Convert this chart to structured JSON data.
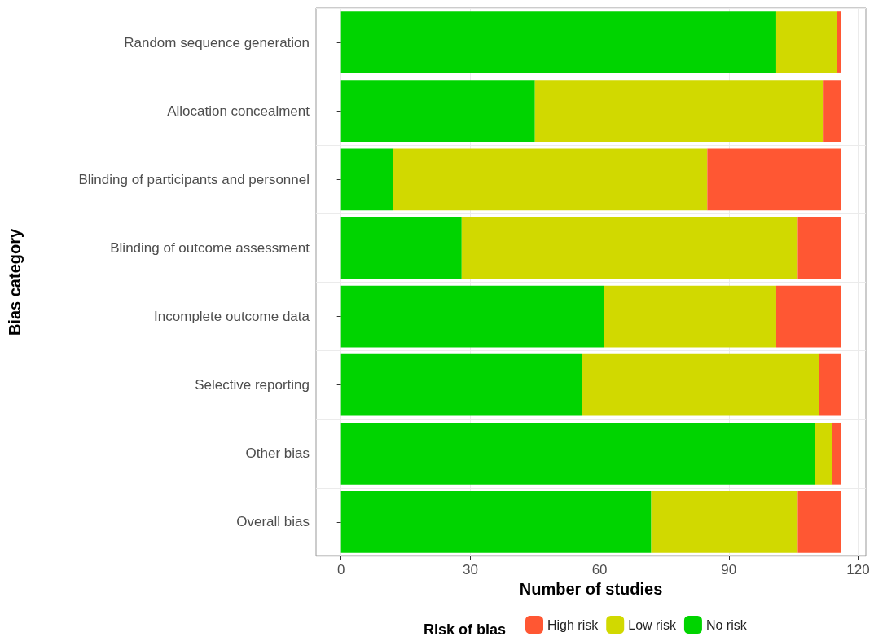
{
  "chart_data": {
    "type": "bar",
    "orientation": "horizontal",
    "stacked": true,
    "xlabel": "Number of studies",
    "ylabel": "Bias category",
    "legend_title": "Risk of bias",
    "legend": "bottom",
    "grid": true,
    "categories": [
      "Random sequence generation",
      "Allocation concealment",
      "Blinding of participants and personnel",
      "Blinding of outcome assessment",
      "Incomplete outcome data",
      "Selective reporting",
      "Other bias",
      "Overall bias"
    ],
    "series": [
      {
        "name": "No risk",
        "color": "#00d400",
        "values": [
          101,
          45,
          12,
          28,
          61,
          56,
          110,
          72
        ]
      },
      {
        "name": "Low risk",
        "color": "#d1d900",
        "values": [
          14,
          67,
          73,
          78,
          40,
          55,
          4,
          34
        ]
      },
      {
        "name": "High risk",
        "color": "#ff5733",
        "values": [
          1,
          4,
          31,
          10,
          15,
          5,
          2,
          10
        ]
      }
    ],
    "xlim": [
      -5.8,
      121.8
    ],
    "xticks": [
      0,
      30,
      60,
      90,
      120
    ]
  }
}
